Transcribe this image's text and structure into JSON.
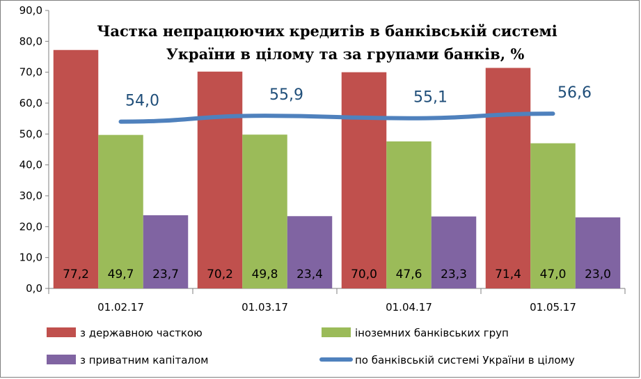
{
  "chart_data": {
    "type": "bar",
    "title_lines": [
      "Частка непрацюючих кредитів в банківській системі",
      "України в цілому та за групами банків, %"
    ],
    "categories": [
      "01.02.17",
      "01.03.17",
      "01.04.17",
      "01.05.17"
    ],
    "ylim": [
      0,
      90
    ],
    "y_ticks": [
      "0,0",
      "10,0",
      "20,0",
      "30,0",
      "40,0",
      "50,0",
      "60,0",
      "70,0",
      "80,0",
      "90,0"
    ],
    "grid": false,
    "legend_position": "bottom",
    "series": [
      {
        "name": "з державною часткою",
        "type": "bar",
        "color": "#c0504d",
        "values": [
          77.2,
          70.2,
          70.0,
          71.4
        ],
        "labels": [
          "77,2",
          "70,2",
          "70,0",
          "71,4"
        ]
      },
      {
        "name": "іноземних банківських груп",
        "type": "bar",
        "color": "#9bbb59",
        "values": [
          49.7,
          49.8,
          47.6,
          47.0
        ],
        "labels": [
          "49,7",
          "49,8",
          "47,6",
          "47,0"
        ]
      },
      {
        "name": "з приватним капіталом",
        "type": "bar",
        "color": "#8064a2",
        "values": [
          23.7,
          23.4,
          23.3,
          23.0
        ],
        "labels": [
          "23,7",
          "23,4",
          "23,3",
          "23,0"
        ]
      },
      {
        "name": "по банківській системі України в цілому",
        "type": "line",
        "color": "#4f81bd",
        "label_color": "#1f4e79",
        "values": [
          54.0,
          55.9,
          55.1,
          56.6
        ],
        "labels": [
          "54,0",
          "55,9",
          "55,1",
          "56,6"
        ]
      }
    ]
  }
}
